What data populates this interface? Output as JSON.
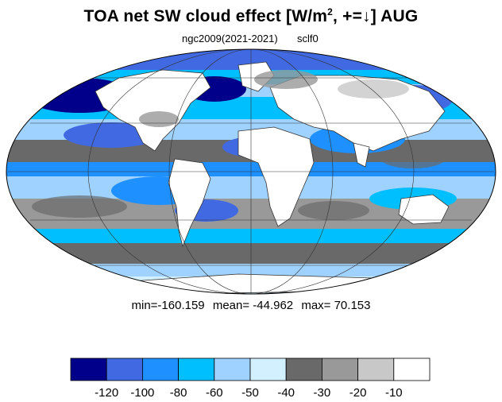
{
  "title": {
    "main": "TOA net SW cloud effect [W/m",
    "superscript": "2",
    "suffix": ", +=↓]  AUG"
  },
  "subtitle": {
    "left": "ngc2009(2021-2021)",
    "right": "sclf0"
  },
  "stats": {
    "min": "min=-160.159",
    "mean": "mean= -44.962",
    "max": "max=  70.153"
  },
  "colorbar": {
    "colors": [
      "#00008b",
      "#4169e1",
      "#1e90ff",
      "#00bfff",
      "#a0d2ff",
      "#d2f0ff",
      "#696969",
      "#999999",
      "#c8c8c8",
      "#ffffff"
    ],
    "labels": [
      "-120",
      "-100",
      "-80",
      "-60",
      "-50",
      "-40",
      "-30",
      "-20",
      "-10"
    ]
  },
  "map": {
    "projection": "mollweide",
    "land_color": "#ffffff",
    "coastline_color": "#333333"
  }
}
